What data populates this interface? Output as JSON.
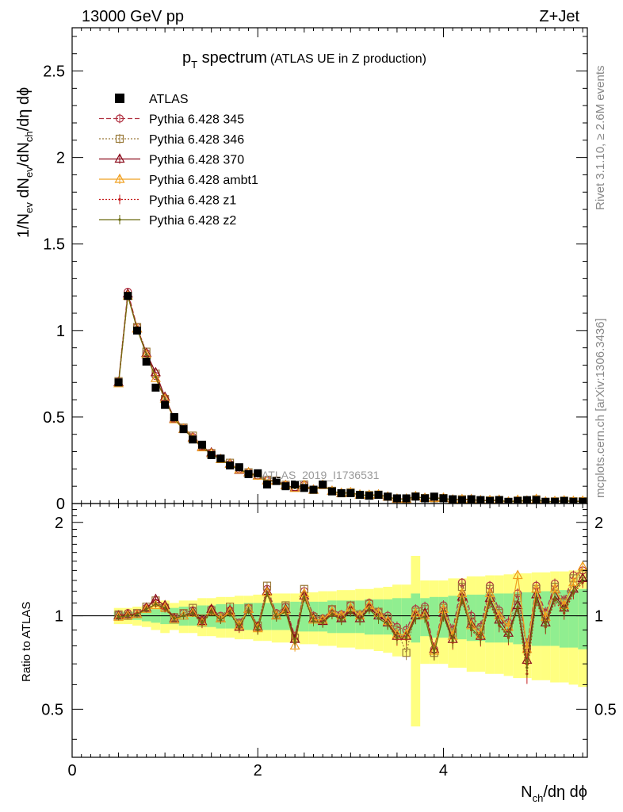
{
  "header": {
    "energy": "13000 GeV pp",
    "process": "Z+Jet"
  },
  "title": {
    "main_pre": "p",
    "main_sub": "T",
    "main_post": " spectrum",
    "small": "(ATLAS UE in Z production)"
  },
  "side_text": {
    "rivet": "Rivet 3.1.10, ≥ 2.6M events",
    "mcplots": "mcplots.cern.ch [arXiv:1306.3436]"
  },
  "watermark": "ATLAS_2019_I1736531",
  "colors": {
    "data": "#000000",
    "band_inner": "#90EE90",
    "band_outer": "#FFFF80",
    "p345": "#b03040",
    "p346": "#9a7a3a",
    "p370": "#8b0a1a",
    "ambt1": "#f0a020",
    "z1": "#c41a1a",
    "z2": "#6b6b10"
  },
  "chart_data": {
    "type": "line",
    "xlabel_main": "N",
    "xlabel_sub": "ch",
    "xlabel_tail": "/dη dϕ",
    "ylabel": "1/N_ev dN_ev/dN_ch/dη dϕ",
    "ylabel_parts": {
      "a": "1/N",
      "a_sub": "ev",
      "b": " dN",
      "b_sub": "ev",
      "c": "/dN",
      "c_sub": "ch",
      "d": "/dη dϕ"
    },
    "ratio_ylabel": "Ratio to ATLAS",
    "xlim": [
      0,
      5.55
    ],
    "ylim": [
      0,
      2.75
    ],
    "ratio_ylim": [
      0.35,
      2.3
    ],
    "xticks": [
      0,
      2,
      4
    ],
    "yticks": [
      0,
      0.5,
      1,
      1.5,
      2,
      2.5
    ],
    "ytick_labels": [
      "0",
      "0.5",
      "1",
      "1.5",
      "2",
      "2.5"
    ],
    "ratio_yticks": [
      0.5,
      1,
      2
    ],
    "ratio_ytick_labels": [
      "0.5",
      "1",
      "2"
    ],
    "x": [
      0.5,
      0.6,
      0.7,
      0.8,
      0.9,
      1.0,
      1.1,
      1.2,
      1.3,
      1.4,
      1.5,
      1.6,
      1.7,
      1.8,
      1.9,
      2.0,
      2.1,
      2.2,
      2.3,
      2.4,
      2.5,
      2.6,
      2.7,
      2.8,
      2.9,
      3.0,
      3.1,
      3.2,
      3.3,
      3.4,
      3.5,
      3.6,
      3.7,
      3.8,
      3.9,
      4.0,
      4.1,
      4.2,
      4.3,
      4.4,
      4.5,
      4.6,
      4.7,
      4.8,
      4.9,
      5.0,
      5.1,
      5.2,
      5.3,
      5.4,
      5.5
    ],
    "data_values": [
      0.7,
      1.2,
      1.0,
      0.82,
      0.67,
      0.57,
      0.5,
      0.43,
      0.37,
      0.34,
      0.28,
      0.26,
      0.22,
      0.21,
      0.17,
      0.175,
      0.11,
      0.13,
      0.1,
      0.11,
      0.09,
      0.08,
      0.11,
      0.07,
      0.06,
      0.06,
      0.05,
      0.045,
      0.05,
      0.04,
      0.03,
      0.03,
      0.04,
      0.03,
      0.04,
      0.03,
      0.025,
      0.02,
      0.025,
      0.02,
      0.015,
      0.02,
      0.01,
      0.015,
      0.02,
      0.02,
      0.01,
      0.01,
      0.015,
      0.01,
      0.01
    ],
    "band_inner_half": [
      0.03,
      0.03,
      0.03,
      0.04,
      0.05,
      0.06,
      0.06,
      0.07,
      0.07,
      0.08,
      0.08,
      0.09,
      0.09,
      0.09,
      0.1,
      0.1,
      0.1,
      0.1,
      0.1,
      0.11,
      0.11,
      0.11,
      0.11,
      0.12,
      0.12,
      0.12,
      0.12,
      0.13,
      0.13,
      0.13,
      0.14,
      0.14,
      0.18,
      0.14,
      0.15,
      0.15,
      0.16,
      0.16,
      0.17,
      0.17,
      0.18,
      0.18,
      0.18,
      0.19,
      0.19,
      0.2,
      0.2,
      0.2,
      0.21,
      0.21,
      0.22
    ],
    "band_outer_half": [
      0.06,
      0.06,
      0.07,
      0.08,
      0.1,
      0.12,
      0.1,
      0.12,
      0.12,
      0.14,
      0.14,
      0.15,
      0.15,
      0.16,
      0.16,
      0.17,
      0.17,
      0.18,
      0.18,
      0.18,
      0.19,
      0.19,
      0.2,
      0.2,
      0.21,
      0.21,
      0.22,
      0.22,
      0.23,
      0.24,
      0.26,
      0.26,
      0.56,
      0.3,
      0.3,
      0.3,
      0.32,
      0.32,
      0.34,
      0.34,
      0.35,
      0.35,
      0.36,
      0.37,
      0.37,
      0.38,
      0.38,
      0.39,
      0.39,
      0.4,
      0.41
    ],
    "series": [
      {
        "name": "ATLAS",
        "key": "data",
        "style": "data"
      },
      {
        "name": "Pythia 6.428 345",
        "key": "p345",
        "style": "dashed",
        "marker": "circle"
      },
      {
        "name": "Pythia 6.428 346",
        "key": "p346",
        "style": "dotted",
        "marker": "square"
      },
      {
        "name": "Pythia 6.428 370",
        "key": "p370",
        "style": "solid",
        "marker": "triangle"
      },
      {
        "name": "Pythia 6.428 ambt1",
        "key": "ambt1",
        "style": "solid",
        "marker": "triangle"
      },
      {
        "name": "Pythia 6.428 z1",
        "key": "z1",
        "style": "dotted",
        "marker": "dot"
      },
      {
        "name": "Pythia 6.428 z2",
        "key": "z2",
        "style": "solid",
        "marker": "dot"
      }
    ],
    "ratios": {
      "p345": [
        1.01,
        1.02,
        1.02,
        1.06,
        1.1,
        1.07,
        0.99,
        1.02,
        1.04,
        0.97,
        1.05,
        1.0,
        1.04,
        0.95,
        1.06,
        0.92,
        1.22,
        1.02,
        1.07,
        0.86,
        1.2,
        1.0,
        0.98,
        1.05,
        1.01,
        1.08,
        1.01,
        1.1,
        1.03,
        1.0,
        0.92,
        0.9,
        1.05,
        1.07,
        0.78,
        1.08,
        0.9,
        1.28,
        1.0,
        0.92,
        1.25,
        1.04,
        0.95,
        1.18,
        0.8,
        1.25,
        1.02,
        1.27,
        1.12,
        1.35,
        1.4
      ],
      "p346": [
        1.01,
        1.0,
        1.02,
        1.07,
        1.12,
        1.06,
        0.99,
        1.02,
        1.06,
        0.98,
        1.04,
        0.99,
        1.07,
        0.94,
        1.06,
        0.93,
        1.25,
        1.01,
        1.08,
        0.85,
        1.22,
        0.99,
        0.97,
        1.05,
        0.99,
        1.08,
        1.01,
        1.09,
        1.03,
        0.98,
        0.9,
        0.76,
        1.03,
        1.05,
        0.76,
        1.06,
        0.88,
        1.24,
        0.96,
        0.9,
        1.22,
        1.02,
        0.92,
        1.14,
        0.78,
        1.22,
        0.98,
        1.24,
        1.1,
        1.32,
        1.36
      ],
      "p370": [
        1.0,
        1.01,
        1.01,
        1.06,
        1.13,
        1.08,
        0.98,
        1.0,
        1.03,
        0.96,
        1.05,
        0.98,
        1.04,
        0.92,
        1.05,
        0.92,
        1.2,
        1.0,
        1.05,
        0.84,
        1.16,
        0.98,
        0.96,
        1.02,
        0.98,
        1.04,
        0.98,
        1.06,
        1.0,
        0.95,
        0.86,
        0.86,
        1.0,
        1.02,
        0.78,
        1.02,
        0.84,
        1.15,
        0.94,
        0.86,
        1.14,
        0.97,
        0.88,
        1.08,
        0.72,
        1.17,
        0.95,
        1.16,
        1.06,
        1.22,
        1.32
      ],
      "ambt1": [
        0.99,
        1.0,
        1.01,
        1.05,
        1.08,
        1.06,
        0.97,
        1.0,
        1.02,
        0.95,
        1.03,
        0.98,
        1.03,
        0.93,
        1.05,
        0.91,
        1.19,
        1.0,
        1.04,
        0.8,
        1.18,
        0.97,
        0.97,
        1.03,
        1.0,
        1.06,
        1.0,
        1.08,
        1.02,
        0.96,
        0.87,
        0.87,
        1.02,
        1.0,
        0.77,
        1.05,
        0.86,
        1.18,
        0.93,
        0.87,
        1.18,
        1.0,
        0.92,
        1.35,
        0.78,
        1.22,
        0.99,
        1.22,
        1.08,
        1.28,
        1.44
      ],
      "z1": [
        0.99,
        1.0,
        1.02,
        1.05,
        1.09,
        1.05,
        0.98,
        1.0,
        1.02,
        0.94,
        1.03,
        0.97,
        1.02,
        0.91,
        1.04,
        0.9,
        1.18,
        0.99,
        1.03,
        0.82,
        1.14,
        0.96,
        0.95,
        1.01,
        0.97,
        1.03,
        0.97,
        1.05,
        0.98,
        0.94,
        0.84,
        0.84,
        0.98,
        0.99,
        0.76,
        1.0,
        0.82,
        1.12,
        0.9,
        0.84,
        1.1,
        0.93,
        0.85,
        1.06,
        0.65,
        1.12,
        0.92,
        1.12,
        1.02,
        1.18,
        1.28
      ],
      "z2": [
        0.99,
        1.0,
        1.01,
        1.05,
        1.09,
        1.06,
        0.98,
        1.0,
        1.02,
        0.95,
        1.03,
        0.97,
        1.02,
        0.92,
        1.04,
        0.9,
        1.18,
        0.99,
        1.03,
        0.82,
        1.15,
        0.96,
        0.95,
        1.01,
        0.97,
        1.03,
        0.97,
        1.05,
        0.98,
        0.94,
        0.85,
        0.85,
        0.98,
        0.99,
        0.76,
        1.0,
        0.83,
        1.13,
        0.91,
        0.85,
        1.12,
        0.94,
        0.86,
        1.07,
        0.68,
        1.14,
        0.93,
        1.14,
        1.04,
        1.2,
        1.3
      ]
    }
  }
}
